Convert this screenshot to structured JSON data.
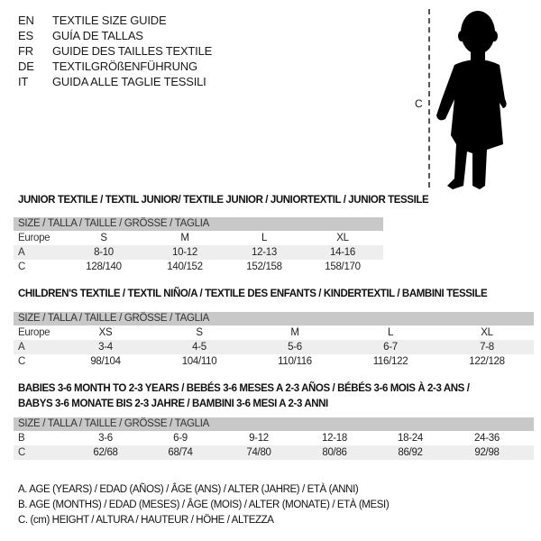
{
  "languages": [
    {
      "code": "EN",
      "text": "TEXTILE SIZE GUIDE"
    },
    {
      "code": "ES",
      "text": "GUÍA DE TALLAS"
    },
    {
      "code": "FR",
      "text": "GUIDE DES TAILLES TEXTILE"
    },
    {
      "code": "DE",
      "text": "TEXTILGRÖßENFÜHRUNG"
    },
    {
      "code": "IT",
      "text": "GUIDA ALLE TAGLIE TESSILI"
    }
  ],
  "figure": {
    "measure_label": "C",
    "icon": "child-silhouette"
  },
  "size_header": "SIZE / TALLA / TAILLE / GRÖSSE / TAGLIA",
  "junior": {
    "title": "JUNIOR TEXTILE / TEXTIL JUNIOR/ TEXTILE JUNIOR / JUNIORTEXTIL / JUNIOR TESSILE",
    "rows": [
      {
        "label": "Europe",
        "cells": [
          "S",
          "M",
          "L",
          "XL"
        ]
      },
      {
        "label": "A",
        "cells": [
          "8-10",
          "10-12",
          "12-13",
          "14-16"
        ]
      },
      {
        "label": "C",
        "cells": [
          "128/140",
          "140/152",
          "152/158",
          "158/170"
        ]
      }
    ]
  },
  "children": {
    "title": "CHILDREN'S TEXTILE / TEXTIL NIÑO/A / TEXTILE DES ENFANTS / KINDERTEXTIL / BAMBINI TESSILE",
    "rows": [
      {
        "label": "Europe",
        "cells": [
          "XS",
          "S",
          "M",
          "L",
          "XL"
        ]
      },
      {
        "label": "A",
        "cells": [
          "3-4",
          "4-5",
          "5-6",
          "6-7",
          "7-8"
        ]
      },
      {
        "label": "C",
        "cells": [
          "98/104",
          "104/110",
          "110/116",
          "116/122",
          "122/128"
        ]
      }
    ]
  },
  "babies": {
    "title_line1": "BABIES 3-6 MONTH TO 2-3 YEARS / BEBÉS 3-6 MESES A 2-3 AÑOS / BÉBÉS 3-6 MOIS À 2-3 ANS /",
    "title_line2": "BABYS 3-6 MONATE BIS 2-3 JAHRE / BAMBINI 3-6 MESI A 2-3 ANNI",
    "rows": [
      {
        "label": "B",
        "cells": [
          "3-6",
          "6-9",
          "9-12",
          "12-18",
          "18-24",
          "24-36"
        ]
      },
      {
        "label": "C",
        "cells": [
          "62/68",
          "68/74",
          "74/80",
          "80/86",
          "86/92",
          "92/98"
        ]
      }
    ]
  },
  "legend": [
    "A. AGE (YEARS) / EDAD (AÑOS) / ÂGE (ANS) / ALTER (JAHRE) / ETÀ (ANNI)",
    "B. AGE (MONTHS) / EDAD (MESES) / ÂGE (MOIS) / ALTER (MONATE) / ETÀ (MESI)",
    "C. (cm) HEIGHT / ALTURA / HAUTEUR / HÖHE / ALTEZZA"
  ]
}
